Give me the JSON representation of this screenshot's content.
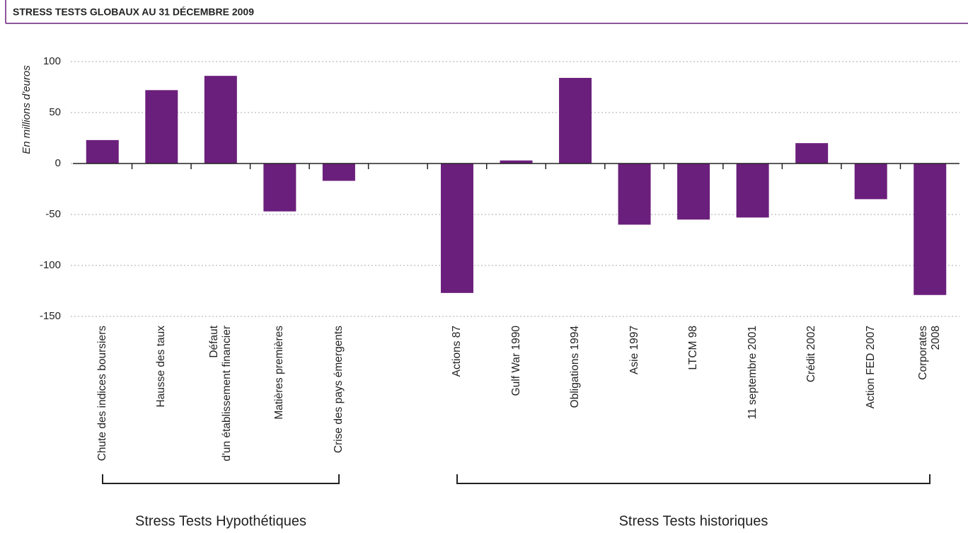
{
  "chart_data": {
    "type": "bar",
    "title": "STRESS TESTS GLOBAUX AU 31 DÉCEMBRE 2009",
    "y_label": "En millions d'euros",
    "categories": [
      "Chute des indices boursiers",
      "Hausse des taux",
      "Défaut\nd'un établissement financier",
      "Matières premières",
      "Crise des pays émergents",
      null,
      "Actions 87",
      "Gulf War 1990",
      "Obligations 1994",
      "Asie 1997",
      "LTCM 98",
      "11 septembre 2001",
      "Crédit 2002",
      "Action FED 2007",
      "Corporates 2008"
    ],
    "values": [
      23,
      72,
      86,
      -47,
      -17,
      null,
      -127,
      3,
      84,
      -60,
      -55,
      -53,
      20,
      -35,
      -129
    ],
    "color": "#6b1f7c",
    "ylim": [
      -150,
      100
    ],
    "yticks": [
      -150,
      -100,
      -50,
      0,
      50,
      100
    ],
    "grid": true,
    "annotations": [
      "Stress Tests Hypothétiques",
      "Stress Tests historiques"
    ]
  }
}
